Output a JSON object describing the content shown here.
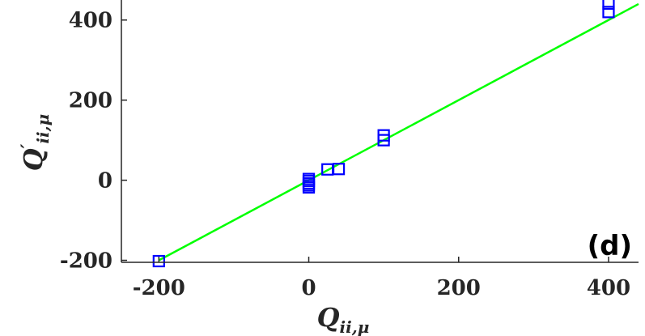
{
  "chart_data": {
    "type": "scatter",
    "xlabel_main": "Q",
    "xlabel_sub": "ii,μ",
    "ylabel_main": "Q",
    "ylabel_prime": "′",
    "ylabel_sub": "ii,μ",
    "panel_label": "(d)",
    "xlim": [
      -250,
      440
    ],
    "ylim": [
      -205,
      450
    ],
    "xticks": [
      -200,
      0,
      200,
      400
    ],
    "yticks": [
      -200,
      0,
      200,
      400
    ],
    "xtick_labels": [
      "-200",
      "0",
      "200",
      "400"
    ],
    "ytick_labels": [
      "-200",
      "0",
      "200",
      "400"
    ],
    "grid": false,
    "series": [
      {
        "type": "scatter",
        "marker": "square",
        "color": "#0000ff",
        "points": [
          [
            -200,
            -202
          ],
          [
            0,
            3
          ],
          [
            0,
            -2
          ],
          [
            0,
            -8
          ],
          [
            0,
            -13
          ],
          [
            0,
            -18
          ],
          [
            25,
            27
          ],
          [
            40,
            28
          ],
          [
            100,
            100
          ],
          [
            100,
            112
          ],
          [
            400,
            420
          ],
          [
            400,
            441
          ]
        ]
      },
      {
        "type": "line",
        "color": "#00ff00",
        "points": [
          [
            -200,
            -200
          ],
          [
            440,
            440
          ]
        ]
      }
    ]
  }
}
